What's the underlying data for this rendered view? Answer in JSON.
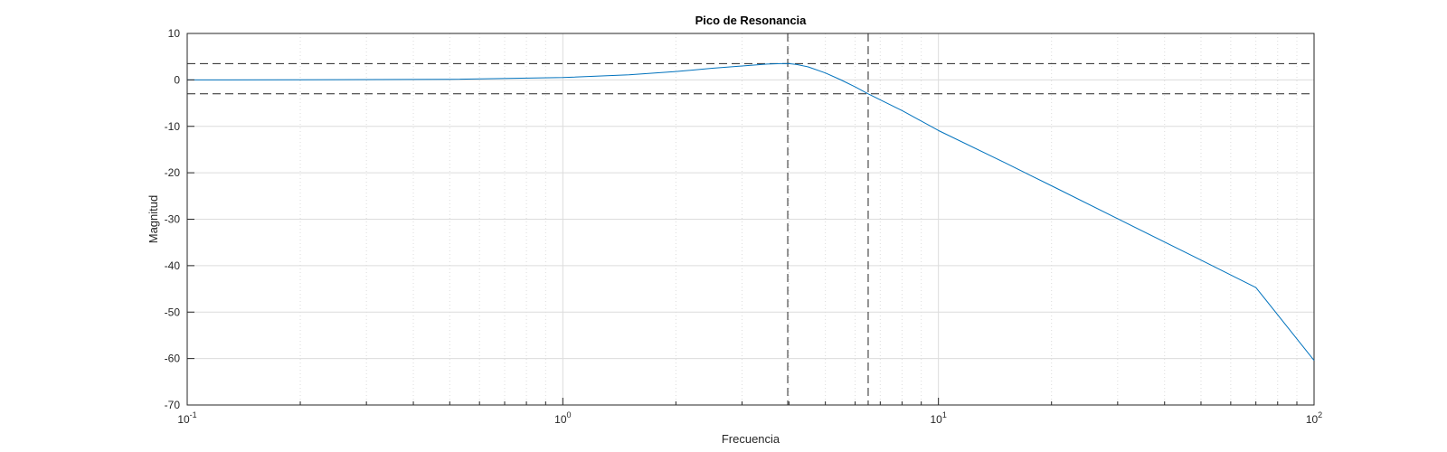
{
  "chart_data": {
    "type": "line",
    "title": "Pico de Resonancia",
    "xlabel": "Frecuencia",
    "ylabel": "Magnitud",
    "xscale": "log",
    "xlim": [
      0.1,
      100
    ],
    "ylim": [
      -70,
      10
    ],
    "grid": true,
    "x_ticks": [
      {
        "base": "10",
        "exp": "-1",
        "value": 0.1
      },
      {
        "base": "10",
        "exp": "0",
        "value": 1
      },
      {
        "base": "10",
        "exp": "1",
        "value": 10
      },
      {
        "base": "10",
        "exp": "2",
        "value": 100
      }
    ],
    "y_ticks": [
      {
        "label": "10",
        "value": 10
      },
      {
        "label": "0",
        "value": 0
      },
      {
        "label": "-10",
        "value": -10
      },
      {
        "label": "-20",
        "value": -20
      },
      {
        "label": "-30",
        "value": -30
      },
      {
        "label": "-40",
        "value": -40
      },
      {
        "label": "-50",
        "value": -50
      },
      {
        "label": "-60",
        "value": -60
      },
      {
        "label": "-70",
        "value": -70
      }
    ],
    "series": [
      {
        "color": "#0072BD",
        "x": [
          0.1,
          0.2,
          0.5,
          1.0,
          1.5,
          2.0,
          2.5,
          3.0,
          3.5,
          3.8,
          4.0,
          4.2,
          4.5,
          5.0,
          5.5,
          6.0,
          6.5,
          7.0,
          8.0,
          10.0,
          15.0,
          20.0,
          30.0,
          50.0,
          70.0,
          100.0
        ],
        "y": [
          0.0,
          0.02,
          0.12,
          0.5,
          1.1,
          1.8,
          2.5,
          3.0,
          3.4,
          3.5,
          3.5,
          3.3,
          2.8,
          1.5,
          0.0,
          -1.5,
          -3.0,
          -4.3,
          -6.6,
          -10.9,
          -17.8,
          -22.8,
          -29.9,
          -38.8,
          -44.7,
          -60.4
        ]
      }
    ],
    "reference_lines": {
      "color": "#262626",
      "style": "dashed",
      "vertical_x": [
        3.97,
        6.5
      ],
      "horizontal_y": [
        3.5,
        -3.0
      ]
    },
    "colors": {
      "axis": "#262626",
      "grid": "#dcdcdc"
    }
  }
}
